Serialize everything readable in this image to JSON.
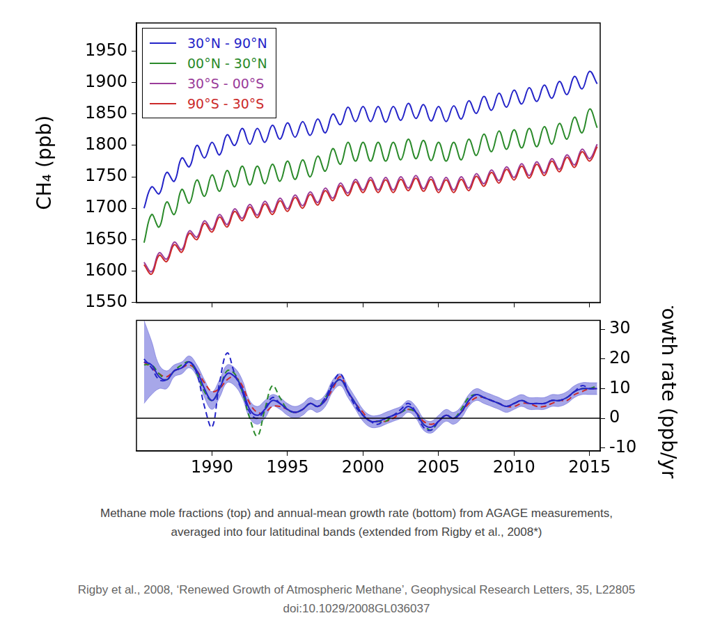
{
  "chart_data": [
    {
      "type": "line",
      "ylabel": "CH₄ (ppb)",
      "x": [
        1985.5,
        1986,
        1986.5,
        1987,
        1987.5,
        1988,
        1988.5,
        1989,
        1989.5,
        1990,
        1990.5,
        1991,
        1991.5,
        1992,
        1992.5,
        1993,
        1993.5,
        1994,
        1994.5,
        1995,
        1995.5,
        1996,
        1996.5,
        1997,
        1997.5,
        1998,
        1998.5,
        1999,
        1999.5,
        2000,
        2000.5,
        2001,
        2001.5,
        2002,
        2002.5,
        2003,
        2003.5,
        2004,
        2004.5,
        2005,
        2005.5,
        2006,
        2006.5,
        2007,
        2007.5,
        2008,
        2008.5,
        2009,
        2009.5,
        2010,
        2010.5,
        2011,
        2011.5,
        2012,
        2012.5,
        2013,
        2013.5,
        2014,
        2014.5,
        2015,
        2015.5
      ],
      "series": [
        {
          "name": "30°N - 90°N",
          "color": "#2424c8",
          "values": [
            1700,
            1734,
            1723,
            1757,
            1743,
            1780,
            1766,
            1800,
            1780,
            1805,
            1785,
            1817,
            1800,
            1827,
            1802,
            1827,
            1805,
            1832,
            1810,
            1836,
            1813,
            1838,
            1816,
            1842,
            1820,
            1850,
            1833,
            1861,
            1838,
            1862,
            1838,
            1862,
            1837,
            1862,
            1840,
            1867,
            1843,
            1865,
            1839,
            1862,
            1838,
            1863,
            1842,
            1871,
            1851,
            1878,
            1856,
            1883,
            1861,
            1888,
            1866,
            1892,
            1870,
            1896,
            1875,
            1902,
            1881,
            1910,
            1890,
            1918,
            1898
          ]
        },
        {
          "name": "00°N - 30°N",
          "color": "#2a8a2a",
          "values": [
            1645,
            1690,
            1670,
            1710,
            1690,
            1730,
            1708,
            1745,
            1719,
            1753,
            1727,
            1760,
            1734,
            1767,
            1737,
            1767,
            1739,
            1770,
            1743,
            1775,
            1746,
            1777,
            1750,
            1783,
            1759,
            1795,
            1770,
            1805,
            1775,
            1805,
            1775,
            1805,
            1775,
            1805,
            1777,
            1810,
            1779,
            1808,
            1776,
            1805,
            1775,
            1805,
            1777,
            1810,
            1784,
            1818,
            1790,
            1823,
            1794,
            1825,
            1796,
            1827,
            1798,
            1830,
            1802,
            1835,
            1810,
            1845,
            1820,
            1858,
            1828
          ]
        },
        {
          "name": "30°S - 00°S",
          "color": "#9a3c9a",
          "values": [
            1614,
            1599,
            1629,
            1619,
            1646,
            1634,
            1664,
            1654,
            1680,
            1666,
            1690,
            1674,
            1699,
            1684,
            1706,
            1689,
            1711,
            1694,
            1716,
            1699,
            1721,
            1704,
            1726,
            1709,
            1732,
            1716,
            1740,
            1724,
            1746,
            1729,
            1749,
            1729,
            1749,
            1729,
            1750,
            1732,
            1752,
            1731,
            1750,
            1729,
            1749,
            1729,
            1750,
            1732,
            1755,
            1739,
            1761,
            1744,
            1766,
            1749,
            1771,
            1752,
            1774,
            1756,
            1779,
            1762,
            1785,
            1769,
            1794,
            1779,
            1802
          ]
        },
        {
          "name": "90°S - 30°S",
          "color": "#cc2a2a",
          "values": [
            1610,
            1595,
            1625,
            1615,
            1642,
            1630,
            1660,
            1650,
            1676,
            1662,
            1686,
            1670,
            1695,
            1680,
            1702,
            1685,
            1707,
            1690,
            1712,
            1695,
            1717,
            1700,
            1722,
            1705,
            1728,
            1712,
            1736,
            1720,
            1742,
            1725,
            1745,
            1725,
            1745,
            1725,
            1746,
            1728,
            1748,
            1727,
            1746,
            1725,
            1745,
            1725,
            1746,
            1728,
            1751,
            1735,
            1757,
            1740,
            1762,
            1745,
            1767,
            1748,
            1770,
            1752,
            1775,
            1758,
            1781,
            1765,
            1790,
            1775,
            1798
          ]
        }
      ],
      "xlim": [
        1985,
        2015.7
      ],
      "xticks": [
        1990,
        1995,
        2000,
        2005,
        2010,
        2015
      ],
      "ylim": [
        1550,
        1995
      ],
      "yticks": [
        1550,
        1600,
        1650,
        1700,
        1750,
        1800,
        1850,
        1900,
        1950
      ],
      "grid": false,
      "legend": "upper left",
      "tick_labels": "y"
    },
    {
      "type": "line",
      "y2label": "Growth rate (ppb/yr)",
      "x": [
        1985.5,
        1986,
        1986.5,
        1987,
        1987.5,
        1988,
        1988.5,
        1989,
        1989.5,
        1990,
        1990.5,
        1991,
        1991.5,
        1992,
        1992.5,
        1993,
        1993.5,
        1994,
        1994.5,
        1995,
        1995.5,
        1996,
        1996.5,
        1997,
        1997.5,
        1998,
        1998.5,
        1999,
        1999.5,
        2000,
        2000.5,
        2001,
        2001.5,
        2002,
        2002.5,
        2003,
        2003.5,
        2004,
        2004.5,
        2005,
        2005.5,
        2006,
        2006.5,
        2007,
        2007.5,
        2008,
        2008.5,
        2009,
        2009.5,
        2010,
        2010.5,
        2011,
        2011.5,
        2012,
        2012.5,
        2013,
        2013.5,
        2014,
        2014.5,
        2015,
        2015.5
      ],
      "series": [
        {
          "color": "#2424c8",
          "line_style": "solid",
          "axis": "y2",
          "values": [
            19,
            18,
            14,
            13,
            16,
            17,
            19,
            16,
            10,
            6,
            10,
            15,
            14,
            10,
            3,
            1,
            3,
            6,
            5,
            3,
            2,
            3,
            5,
            4,
            6,
            11,
            13,
            9,
            5,
            1,
            -1,
            -1,
            0,
            1,
            2,
            4,
            2,
            -2,
            -3,
            -1,
            1,
            0,
            2,
            6,
            8,
            7,
            6,
            5,
            4,
            5,
            6,
            5,
            5,
            5,
            6,
            6,
            7,
            9,
            10,
            10,
            10
          ],
          "lower": [
            5,
            8,
            10,
            10,
            14,
            15,
            17,
            14,
            7,
            3,
            7,
            12,
            11,
            7,
            0,
            -2,
            0,
            4,
            3,
            1,
            0,
            1,
            3,
            2,
            4,
            9,
            11,
            7,
            3,
            -1,
            -3,
            -3,
            -2,
            -1,
            0,
            2,
            0,
            -4,
            -5,
            -3,
            -1,
            -2,
            0,
            4,
            6,
            5,
            4,
            3,
            2,
            3,
            4,
            3,
            3,
            3,
            4,
            4,
            5,
            7,
            8,
            8,
            8
          ],
          "upper": [
            33,
            26,
            18,
            16,
            18,
            19,
            21,
            18,
            13,
            9,
            13,
            18,
            17,
            13,
            6,
            4,
            6,
            8,
            7,
            5,
            4,
            5,
            7,
            6,
            8,
            13,
            15,
            11,
            7,
            3,
            1,
            1,
            2,
            3,
            4,
            6,
            4,
            0,
            -1,
            1,
            3,
            2,
            4,
            8,
            10,
            9,
            8,
            7,
            6,
            7,
            8,
            7,
            7,
            7,
            8,
            8,
            9,
            11,
            12,
            12,
            12
          ]
        },
        {
          "name": "30°N - 90°N",
          "color": "#2424c8",
          "line_style": "dashed",
          "axis": "y2",
          "values": [
            20,
            17,
            13,
            13,
            16,
            17,
            19,
            15,
            4,
            -3,
            12,
            22,
            15,
            9,
            2,
            0,
            3,
            7,
            5,
            3,
            2,
            3,
            5,
            4,
            7,
            12,
            15,
            9,
            4,
            1,
            -1,
            -2,
            0,
            1,
            3,
            5,
            2,
            -3,
            -4,
            -1,
            1,
            0,
            2,
            6,
            8,
            7,
            6,
            5,
            4,
            5,
            6,
            5,
            5,
            5,
            6,
            6,
            7,
            9,
            11,
            10,
            10
          ]
        },
        {
          "name": "00°N - 30°N",
          "color": "#2a8a2a",
          "line_style": "dashed",
          "axis": "y2",
          "values": [
            18,
            18,
            15,
            13,
            16,
            18,
            19,
            15,
            9,
            6,
            10,
            16,
            15,
            9,
            0,
            -6,
            3,
            11,
            7,
            3,
            2,
            3,
            5,
            4,
            7,
            11,
            13,
            9,
            5,
            1,
            -1,
            -1,
            -1,
            1,
            2,
            3,
            2,
            -2,
            -4,
            -1,
            1,
            0,
            3,
            7,
            8,
            7,
            6,
            5,
            4,
            5,
            6,
            5,
            5,
            5,
            6,
            6,
            7,
            9,
            10,
            10,
            11
          ]
        },
        {
          "name": "90°S - 30°S",
          "color": "#cc2a2a",
          "line_style": "dashed",
          "axis": "y2",
          "values": [
            19,
            17,
            15,
            14,
            16,
            17,
            18,
            16,
            12,
            9,
            10,
            13,
            14,
            11,
            5,
            2,
            2,
            4,
            4,
            3,
            2,
            3,
            5,
            4,
            6,
            10,
            14,
            9,
            5,
            2,
            -1,
            -1,
            -1,
            0,
            2,
            3,
            2,
            -1,
            -2,
            -1,
            1,
            0,
            2,
            5,
            7,
            7,
            6,
            5,
            4,
            4,
            5,
            5,
            4,
            4,
            5,
            6,
            6,
            8,
            9,
            10,
            10
          ]
        }
      ],
      "xlim": [
        1985,
        2015.7
      ],
      "xticks": [
        1990,
        1995,
        2000,
        2005,
        2010,
        2015
      ],
      "y2lim": [
        -11,
        33
      ],
      "y2ticks": [
        -10,
        0,
        10,
        20,
        30
      ],
      "hline": 0,
      "grid": false
    }
  ],
  "caption": [
    "Methane mole fractions (top) and annual-mean growth rate (bottom) from AGAGE measurements,",
    "averaged into four latitudinal bands (extended from Rigby et al., 2008*)"
  ],
  "source": [
    "Rigby et al., 2008, ‘Renewed Growth of Atmospheric Methane’, Geophysical Research Letters, 35, L22805",
    "doi:10.1029/2008GL036037"
  ]
}
